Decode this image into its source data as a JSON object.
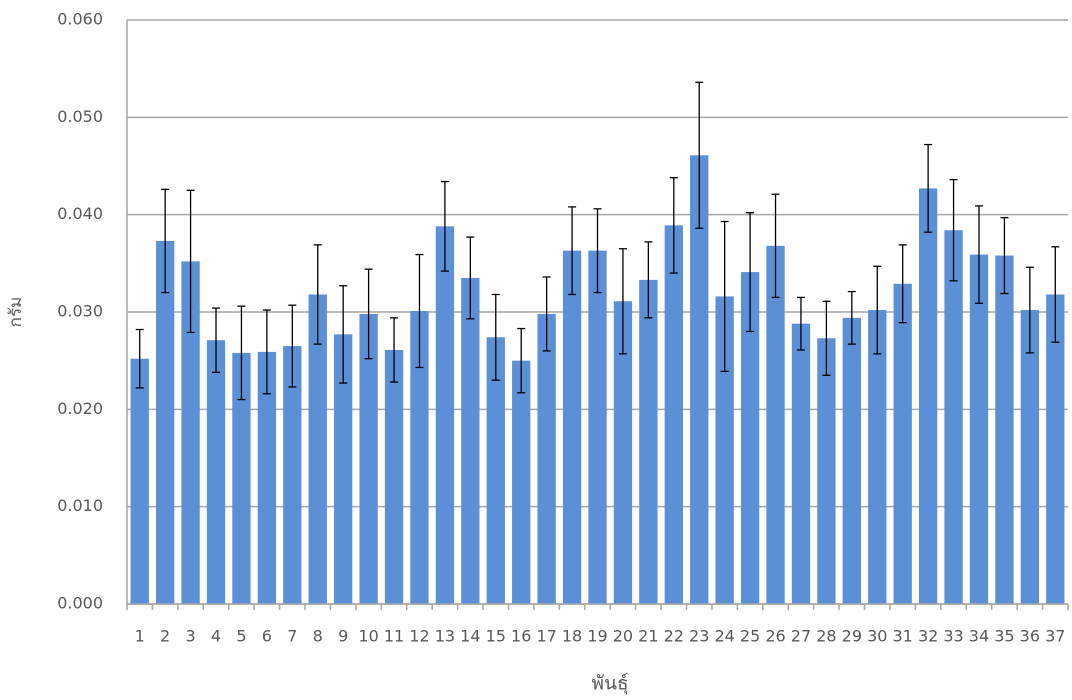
{
  "chart_data": {
    "type": "bar",
    "x_label": "พันธุ์",
    "y_label": "กรัม",
    "categories": [
      "1",
      "2",
      "3",
      "4",
      "5",
      "6",
      "7",
      "8",
      "9",
      "10",
      "11",
      "12",
      "13",
      "14",
      "15",
      "16",
      "17",
      "18",
      "19",
      "20",
      "21",
      "22",
      "23",
      "24",
      "25",
      "26",
      "27",
      "28",
      "29",
      "30",
      "31",
      "32",
      "33",
      "34",
      "35",
      "36",
      "37"
    ],
    "values": [
      0.0252,
      0.0373,
      0.0352,
      0.0271,
      0.0258,
      0.0259,
      0.0265,
      0.0318,
      0.0277,
      0.0298,
      0.0261,
      0.0301,
      0.0388,
      0.0335,
      0.0274,
      0.025,
      0.0298,
      0.0363,
      0.0363,
      0.0311,
      0.0333,
      0.0389,
      0.0461,
      0.0316,
      0.0341,
      0.0368,
      0.0288,
      0.0273,
      0.0294,
      0.0302,
      0.0329,
      0.0427,
      0.0384,
      0.0359,
      0.0358,
      0.0302,
      0.0318
    ],
    "errors": [
      0.003,
      0.0053,
      0.0073,
      0.0033,
      0.0048,
      0.0043,
      0.0042,
      0.0051,
      0.005,
      0.0046,
      0.0033,
      0.0058,
      0.0046,
      0.0042,
      0.0044,
      0.0033,
      0.0038,
      0.0045,
      0.0043,
      0.0054,
      0.0039,
      0.0049,
      0.0075,
      0.0077,
      0.0061,
      0.0053,
      0.0027,
      0.0038,
      0.0027,
      0.0045,
      0.004,
      0.0045,
      0.0052,
      0.005,
      0.0039,
      0.0044,
      0.0049
    ],
    "color": "#5b8fd6",
    "ylim": [
      0,
      0.06
    ],
    "yticks": [
      {
        "value": 0,
        "label": "0.000"
      },
      {
        "value": 0.01,
        "label": "0.010"
      },
      {
        "value": 0.02,
        "label": "0.020"
      },
      {
        "value": 0.03,
        "label": "0.030"
      },
      {
        "value": 0.04,
        "label": "0.040"
      },
      {
        "value": 0.05,
        "label": "0.050"
      },
      {
        "value": 0.06,
        "label": "0.060"
      }
    ],
    "grid": true
  }
}
